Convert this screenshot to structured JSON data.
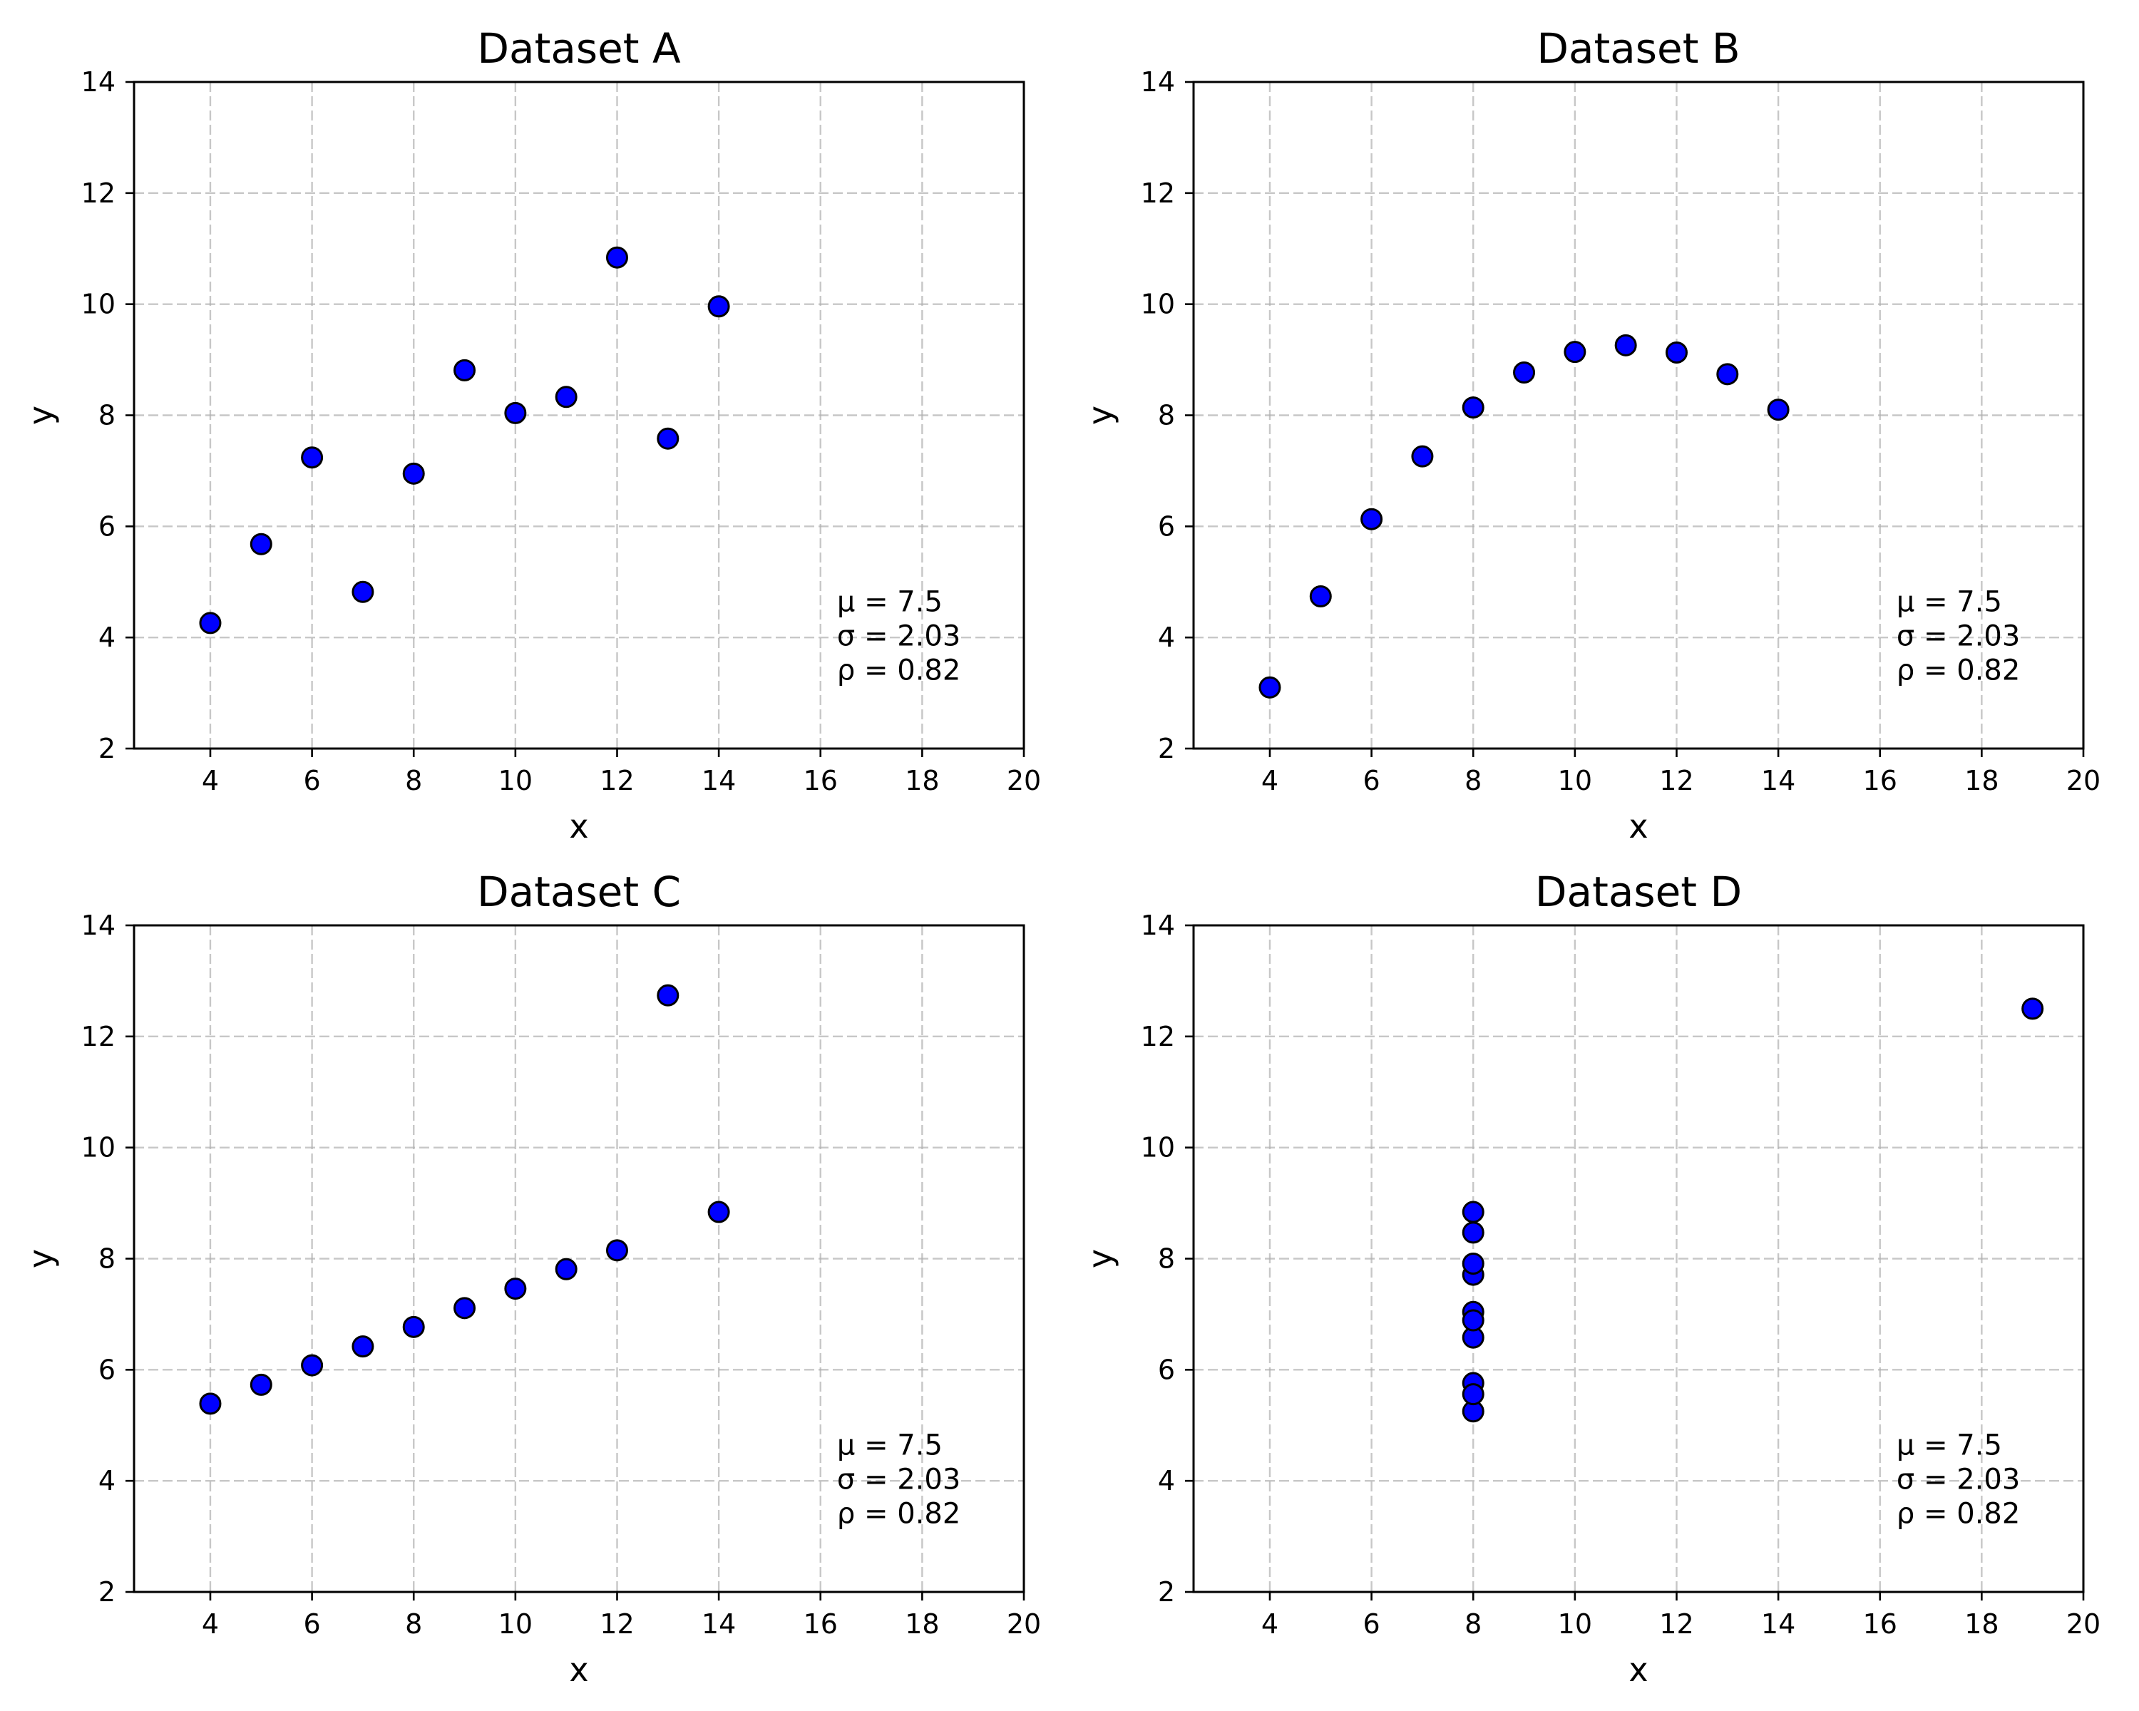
{
  "chart_data": [
    {
      "type": "scatter",
      "title": "Dataset A",
      "xlabel": "x",
      "ylabel": "y",
      "xlim": [
        2.5,
        20
      ],
      "ylim": [
        2,
        14
      ],
      "xticks": [
        4,
        6,
        8,
        10,
        12,
        14,
        16,
        18,
        20
      ],
      "yticks": [
        2,
        4,
        6,
        8,
        10,
        12,
        14
      ],
      "grid": true,
      "marker_color": "#0000ff",
      "x": [
        10,
        8,
        13,
        9,
        11,
        14,
        6,
        4,
        12,
        7,
        5
      ],
      "y": [
        8.04,
        6.95,
        7.58,
        8.81,
        8.33,
        9.96,
        7.24,
        4.26,
        10.84,
        4.82,
        5.68
      ],
      "stats": [
        "μ = 7.5",
        "σ = 2.03",
        "ρ = 0.82"
      ]
    },
    {
      "type": "scatter",
      "title": "Dataset B",
      "xlabel": "x",
      "ylabel": "y",
      "xlim": [
        2.5,
        20
      ],
      "ylim": [
        2,
        14
      ],
      "xticks": [
        4,
        6,
        8,
        10,
        12,
        14,
        16,
        18,
        20
      ],
      "yticks": [
        2,
        4,
        6,
        8,
        10,
        12,
        14
      ],
      "grid": true,
      "marker_color": "#0000ff",
      "x": [
        10,
        8,
        13,
        9,
        11,
        14,
        6,
        4,
        12,
        7,
        5
      ],
      "y": [
        9.14,
        8.14,
        8.74,
        8.77,
        9.26,
        8.1,
        6.13,
        3.1,
        9.13,
        7.26,
        4.74
      ],
      "stats": [
        "μ = 7.5",
        "σ = 2.03",
        "ρ = 0.82"
      ]
    },
    {
      "type": "scatter",
      "title": "Dataset C",
      "xlabel": "x",
      "ylabel": "y",
      "xlim": [
        2.5,
        20
      ],
      "ylim": [
        2,
        14
      ],
      "xticks": [
        4,
        6,
        8,
        10,
        12,
        14,
        16,
        18,
        20
      ],
      "yticks": [
        2,
        4,
        6,
        8,
        10,
        12,
        14
      ],
      "grid": true,
      "marker_color": "#0000ff",
      "x": [
        10,
        8,
        13,
        9,
        11,
        14,
        6,
        4,
        12,
        7,
        5
      ],
      "y": [
        7.46,
        6.77,
        12.74,
        7.11,
        7.81,
        8.84,
        6.08,
        5.39,
        8.15,
        6.42,
        5.73
      ],
      "stats": [
        "μ = 7.5",
        "σ = 2.03",
        "ρ = 0.82"
      ]
    },
    {
      "type": "scatter",
      "title": "Dataset D",
      "xlabel": "x",
      "ylabel": "y",
      "xlim": [
        2.5,
        20
      ],
      "ylim": [
        2,
        14
      ],
      "xticks": [
        4,
        6,
        8,
        10,
        12,
        14,
        16,
        18,
        20
      ],
      "yticks": [
        2,
        4,
        6,
        8,
        10,
        12,
        14
      ],
      "grid": true,
      "marker_color": "#0000ff",
      "x": [
        8,
        8,
        8,
        8,
        8,
        8,
        8,
        19,
        8,
        8,
        8
      ],
      "y": [
        6.58,
        5.76,
        7.71,
        8.84,
        8.47,
        7.04,
        5.25,
        12.5,
        5.56,
        7.91,
        6.89
      ],
      "stats": [
        "μ = 7.5",
        "σ = 2.03",
        "ρ = 0.82"
      ]
    }
  ]
}
